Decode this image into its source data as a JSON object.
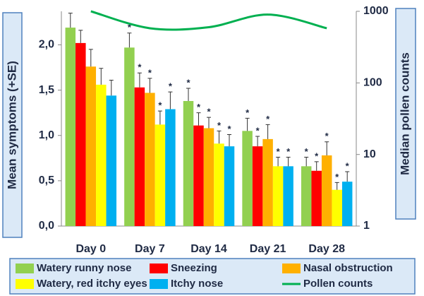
{
  "chart_data": {
    "type": "bar",
    "categories": [
      "Day 0",
      "Day 7",
      "Day 14",
      "Day 21",
      "Day 28"
    ],
    "series": [
      {
        "name": "Watery runny nose",
        "color": "#92d050",
        "values": [
          2.19,
          1.97,
          1.38,
          1.05,
          0.66
        ],
        "errors": [
          0.16,
          0.16,
          0.14,
          0.14,
          0.1
        ],
        "significance": [
          null,
          "*",
          "*",
          "*",
          "*"
        ]
      },
      {
        "name": "Sneezing",
        "color": "#ff0000",
        "values": [
          2.02,
          1.53,
          1.11,
          0.88,
          0.61
        ],
        "errors": [
          0.14,
          0.16,
          0.14,
          0.11,
          0.1
        ],
        "significance": [
          null,
          "*",
          "*",
          "*",
          "*"
        ]
      },
      {
        "name": "Nasal obstruction",
        "color": "#ffb000",
        "values": [
          1.76,
          1.47,
          1.08,
          0.96,
          0.78
        ],
        "errors": [
          0.19,
          0.16,
          0.12,
          0.16,
          0.15
        ],
        "significance": [
          null,
          "*",
          "*",
          "*",
          "*"
        ]
      },
      {
        "name": "Watery, red itchy eyes",
        "color": "#ffff00",
        "values": [
          1.56,
          1.12,
          0.91,
          0.66,
          0.4
        ],
        "errors": [
          0.18,
          0.15,
          0.14,
          0.1,
          0.08
        ],
        "significance": [
          null,
          "*",
          "*",
          "*",
          "*"
        ]
      },
      {
        "name": "Itchy nose",
        "color": "#00b0f0",
        "values": [
          1.44,
          1.29,
          0.88,
          0.66,
          0.49
        ],
        "errors": [
          0.17,
          0.19,
          0.13,
          0.1,
          0.11
        ],
        "significance": [
          null,
          "*",
          "*",
          "*",
          "*"
        ]
      },
      {
        "name": "Pollen counts",
        "type": "line",
        "axis": "y2",
        "color": "#00b050",
        "values": [
          1000,
          580,
          600,
          900,
          580
        ]
      }
    ],
    "ylabel": "Mean symptoms (+SE)",
    "y2label": "Median pollen counts",
    "ylim": [
      0,
      2.37
    ],
    "yticks": [
      {
        "value": 0,
        "label": "0,0"
      },
      {
        "value": 0.5,
        "label": "0,5"
      },
      {
        "value": 1,
        "label": "1,0"
      },
      {
        "value": 1.5,
        "label": "1,5"
      },
      {
        "value": 2,
        "label": "2,0"
      }
    ],
    "y2lim": [
      1,
      1000
    ],
    "y2ticks": [
      1,
      10,
      100,
      1000
    ],
    "y2scale": "log",
    "legend": "bottom"
  }
}
